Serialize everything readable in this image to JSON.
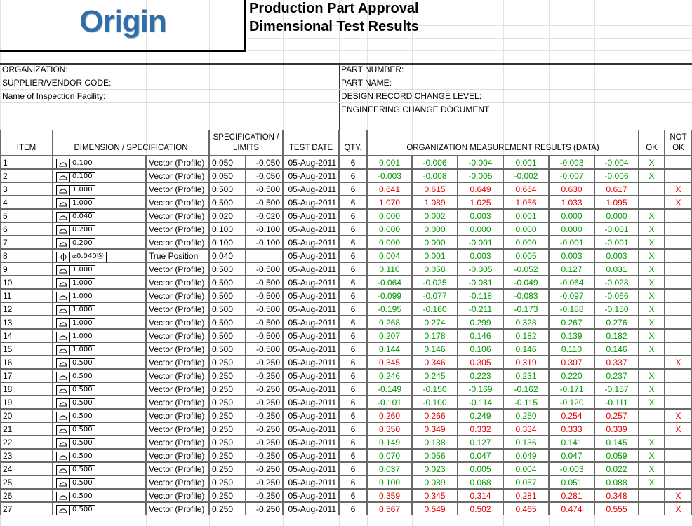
{
  "header": {
    "logo": "Origin",
    "title_line1": "Production Part Approval",
    "title_line2": "Dimensional Test Results"
  },
  "info": {
    "left": [
      "ORGANIZATION:",
      "SUPPLIER/VENDOR CODE:",
      "Name of Inspection Facility:"
    ],
    "right": [
      "PART NUMBER:",
      "PART NAME:",
      "DESIGN RECORD CHANGE LEVEL:",
      "ENGINEERING CHANGE DOCUMENT"
    ]
  },
  "table": {
    "headers": {
      "item": "ITEM",
      "dimension": "DIMENSION / SPECIFICATION",
      "limits": "SPECIFICATION / LIMITS",
      "date": "TEST DATE",
      "qty": "QTY.",
      "results": "ORGANIZATION MEASUREMENT RESULTS (DATA)",
      "ok": "OK",
      "not_ok": "NOT OK"
    },
    "rows": [
      {
        "item": "1",
        "symbol": "profile",
        "tolerance": "0.100",
        "spec": "Vector (Profile)",
        "upper": "0.050",
        "lower": "-0.050",
        "date": "05-Aug-2011",
        "qty": "6",
        "results": [
          "0.001",
          "-0.006",
          "-0.004",
          "0.001",
          "-0.003",
          "-0.004"
        ],
        "ok": "X"
      },
      {
        "item": "2",
        "symbol": "profile",
        "tolerance": "0.100",
        "spec": "Vector (Profile)",
        "upper": "0.050",
        "lower": "-0.050",
        "date": "05-Aug-2011",
        "qty": "6",
        "results": [
          "-0.003",
          "-0.008",
          "-0.005",
          "-0.002",
          "-0.007",
          "-0.006"
        ],
        "ok": "X"
      },
      {
        "item": "3",
        "symbol": "profile",
        "tolerance": "1.000",
        "spec": "Vector (Profile)",
        "upper": "0.500",
        "lower": "-0.500",
        "date": "05-Aug-2011",
        "qty": "6",
        "results": [
          "0.641",
          "0.615",
          "0.649",
          "0.664",
          "0.630",
          "0.617"
        ],
        "not_ok": "X"
      },
      {
        "item": "4",
        "symbol": "profile",
        "tolerance": "1.000",
        "spec": "Vector (Profile)",
        "upper": "0.500",
        "lower": "-0.500",
        "date": "05-Aug-2011",
        "qty": "6",
        "results": [
          "1.070",
          "1.089",
          "1.025",
          "1.056",
          "1.033",
          "1.095"
        ],
        "not_ok": "X"
      },
      {
        "item": "5",
        "symbol": "profile",
        "tolerance": "0.040",
        "spec": "Vector (Profile)",
        "upper": "0.020",
        "lower": "-0.020",
        "date": "05-Aug-2011",
        "qty": "6",
        "results": [
          "0.000",
          "0.002",
          "0.003",
          "0.001",
          "0.000",
          "0.000"
        ],
        "ok": "X"
      },
      {
        "item": "6",
        "symbol": "profile",
        "tolerance": "0.200",
        "spec": "Vector (Profile)",
        "upper": "0.100",
        "lower": "-0.100",
        "date": "05-Aug-2011",
        "qty": "6",
        "results": [
          "0.000",
          "0.000",
          "0.000",
          "0.000",
          "0.000",
          "-0.001"
        ],
        "ok": "X"
      },
      {
        "item": "7",
        "symbol": "profile",
        "tolerance": "0.200",
        "spec": "Vector (Profile)",
        "upper": "0.100",
        "lower": "-0.100",
        "date": "05-Aug-2011",
        "qty": "6",
        "results": [
          "0.000",
          "0.000",
          "-0.001",
          "0.000",
          "-0.001",
          "-0.001"
        ],
        "ok": "X"
      },
      {
        "item": "8",
        "symbol": "position",
        "tolerance": "⌀0.040Ⓢ",
        "spec": "True Position",
        "upper": "0.040",
        "date": "05-Aug-2011",
        "qty": "6",
        "results": [
          "0.004",
          "0.001",
          "0.003",
          "0.005",
          "0.003",
          "0.003"
        ],
        "ok": "X"
      },
      {
        "item": "9",
        "symbol": "profile",
        "tolerance": "1.000",
        "spec": "Vector (Profile)",
        "upper": "0.500",
        "lower": "-0.500",
        "date": "05-Aug-2011",
        "qty": "6",
        "results": [
          "0.110",
          "0.058",
          "-0.005",
          "-0.052",
          "0.127",
          "0.031"
        ],
        "ok": "X"
      },
      {
        "item": "10",
        "symbol": "profile",
        "tolerance": "1.000",
        "spec": "Vector (Profile)",
        "upper": "0.500",
        "lower": "-0.500",
        "date": "05-Aug-2011",
        "qty": "6",
        "results": [
          "-0.064",
          "-0.025",
          "-0.081",
          "-0.049",
          "-0.064",
          "-0.028"
        ],
        "ok": "X"
      },
      {
        "item": "11",
        "symbol": "profile",
        "tolerance": "1.000",
        "spec": "Vector (Profile)",
        "upper": "0.500",
        "lower": "-0.500",
        "date": "05-Aug-2011",
        "qty": "6",
        "results": [
          "-0.099",
          "-0.077",
          "-0.118",
          "-0.083",
          "-0.097",
          "-0.066"
        ],
        "ok": "X"
      },
      {
        "item": "12",
        "symbol": "profile",
        "tolerance": "1.000",
        "spec": "Vector (Profile)",
        "upper": "0.500",
        "lower": "-0.500",
        "date": "05-Aug-2011",
        "qty": "6",
        "results": [
          "-0.195",
          "-0.160",
          "-0.211",
          "-0.173",
          "-0.188",
          "-0.150"
        ],
        "ok": "X"
      },
      {
        "item": "13",
        "symbol": "profile",
        "tolerance": "1.000",
        "spec": "Vector (Profile)",
        "upper": "0.500",
        "lower": "-0.500",
        "date": "05-Aug-2011",
        "qty": "6",
        "results": [
          "0.268",
          "0.274",
          "0.299",
          "0.328",
          "0.267",
          "0.276"
        ],
        "ok": "X"
      },
      {
        "item": "14",
        "symbol": "profile",
        "tolerance": "1.000",
        "spec": "Vector (Profile)",
        "upper": "0.500",
        "lower": "-0.500",
        "date": "05-Aug-2011",
        "qty": "6",
        "results": [
          "0.207",
          "0.178",
          "0.146",
          "0.182",
          "0.139",
          "0.182"
        ],
        "ok": "X"
      },
      {
        "item": "15",
        "symbol": "profile",
        "tolerance": "1.000",
        "spec": "Vector (Profile)",
        "upper": "0.500",
        "lower": "-0.500",
        "date": "05-Aug-2011",
        "qty": "6",
        "results": [
          "0.144",
          "0.146",
          "0.106",
          "0.146",
          "0.110",
          "0.146"
        ],
        "ok": "X"
      },
      {
        "item": "16",
        "symbol": "profile",
        "tolerance": "0.500",
        "spec": "Vector (Profile)",
        "upper": "0.250",
        "lower": "-0.250",
        "date": "05-Aug-2011",
        "qty": "6",
        "results": [
          "0.345",
          "0.346",
          "0.305",
          "0.319",
          "0.307",
          "0.337"
        ],
        "not_ok": "X"
      },
      {
        "item": "17",
        "symbol": "profile",
        "tolerance": "0.500",
        "spec": "Vector (Profile)",
        "upper": "0.250",
        "lower": "-0.250",
        "date": "05-Aug-2011",
        "qty": "6",
        "results": [
          "0.246",
          "0.245",
          "0.223",
          "0.231",
          "0.220",
          "0.237"
        ],
        "ok": "X"
      },
      {
        "item": "18",
        "symbol": "profile",
        "tolerance": "0.500",
        "spec": "Vector (Profile)",
        "upper": "0.250",
        "lower": "-0.250",
        "date": "05-Aug-2011",
        "qty": "6",
        "results": [
          "-0.149",
          "-0.150",
          "-0.169",
          "-0.162",
          "-0.171",
          "-0.157"
        ],
        "ok": "X"
      },
      {
        "item": "19",
        "symbol": "profile",
        "tolerance": "0.500",
        "spec": "Vector (Profile)",
        "upper": "0.250",
        "lower": "-0.250",
        "date": "05-Aug-2011",
        "qty": "6",
        "results": [
          "-0.101",
          "-0.100",
          "-0.114",
          "-0.115",
          "-0.120",
          "-0.111"
        ],
        "ok": "X"
      },
      {
        "item": "20",
        "symbol": "profile",
        "tolerance": "0.500",
        "spec": "Vector (Profile)",
        "upper": "0.250",
        "lower": "-0.250",
        "date": "05-Aug-2011",
        "qty": "6",
        "results": [
          "0.260",
          "0.266",
          "0.249",
          "0.250",
          "0.254",
          "0.257"
        ],
        "not_ok": "X"
      },
      {
        "item": "21",
        "symbol": "profile",
        "tolerance": "0.500",
        "spec": "Vector (Profile)",
        "upper": "0.250",
        "lower": "-0.250",
        "date": "05-Aug-2011",
        "qty": "6",
        "results": [
          "0.350",
          "0.349",
          "0.332",
          "0.334",
          "0.333",
          "0.339"
        ],
        "not_ok": "X"
      },
      {
        "item": "22",
        "symbol": "profile",
        "tolerance": "0.500",
        "spec": "Vector (Profile)",
        "upper": "0.250",
        "lower": "-0.250",
        "date": "05-Aug-2011",
        "qty": "6",
        "results": [
          "0.149",
          "0.138",
          "0.127",
          "0.136",
          "0.141",
          "0.145"
        ],
        "ok": "X"
      },
      {
        "item": "23",
        "symbol": "profile",
        "tolerance": "0.500",
        "spec": "Vector (Profile)",
        "upper": "0.250",
        "lower": "-0.250",
        "date": "05-Aug-2011",
        "qty": "6",
        "results": [
          "0.070",
          "0.056",
          "0.047",
          "0.049",
          "0.047",
          "0.059"
        ],
        "ok": "X"
      },
      {
        "item": "24",
        "symbol": "profile",
        "tolerance": "0.500",
        "spec": "Vector (Profile)",
        "upper": "0.250",
        "lower": "-0.250",
        "date": "05-Aug-2011",
        "qty": "6",
        "results": [
          "0.037",
          "0.023",
          "0.005",
          "0.004",
          "-0.003",
          "0.022"
        ],
        "ok": "X"
      },
      {
        "item": "25",
        "symbol": "profile",
        "tolerance": "0.500",
        "spec": "Vector (Profile)",
        "upper": "0.250",
        "lower": "-0.250",
        "date": "05-Aug-2011",
        "qty": "6",
        "results": [
          "0.100",
          "0.089",
          "0.068",
          "0.057",
          "0.051",
          "0.088"
        ],
        "ok": "X"
      },
      {
        "item": "26",
        "symbol": "profile",
        "tolerance": "0.500",
        "spec": "Vector (Profile)",
        "upper": "0.250",
        "lower": "-0.250",
        "date": "05-Aug-2011",
        "qty": "6",
        "results": [
          "0.359",
          "0.345",
          "0.314",
          "0.281",
          "0.281",
          "0.348"
        ],
        "not_ok": "X"
      },
      {
        "item": "27",
        "symbol": "profile",
        "tolerance": "0.500",
        "spec": "Vector (Profile)",
        "upper": "0.250",
        "lower": "-0.250",
        "date": "05-Aug-2011",
        "qty": "6",
        "results": [
          "0.567",
          "0.549",
          "0.502",
          "0.465",
          "0.474",
          "0.555"
        ],
        "not_ok": "X"
      }
    ]
  }
}
